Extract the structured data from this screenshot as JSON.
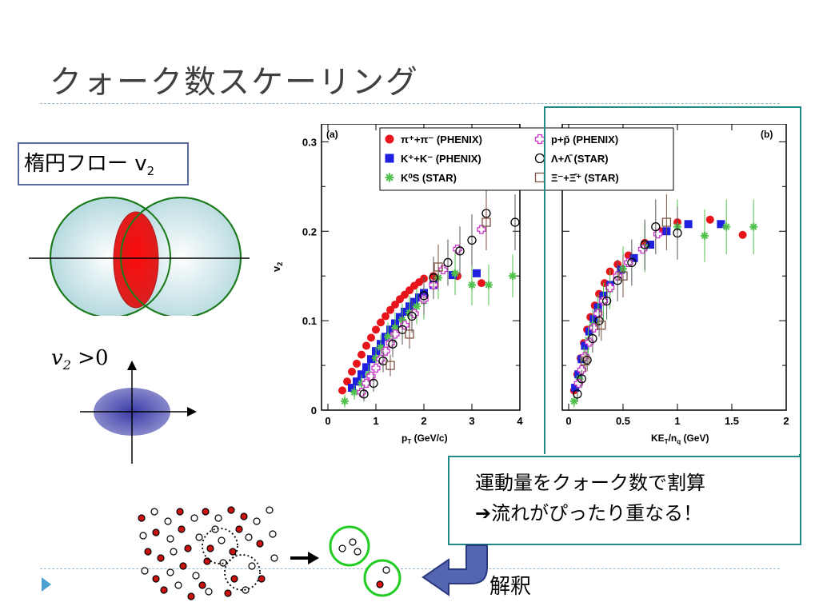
{
  "slide": {
    "title": "クォーク数スケーリング",
    "flow_label": "楕円フロー v",
    "flow_label_sub": "2",
    "v2_condition_var": "v",
    "v2_condition_sub": "2",
    "v2_condition_rest": " >0",
    "callout_line1": "運動量をクォーク数で割算",
    "callout_line2": "➔流れがぴったり重なる！",
    "interpretation": "解釈"
  },
  "colors": {
    "pion": "#e8141b",
    "kaon": "#1f1fe0",
    "ks0": "#52c24e",
    "proton": "#cc33cc",
    "lambda": "#000000",
    "xi": "#7a5240",
    "teal_box": "#1f8a8a",
    "nucleus_edge": "#1a7a1a",
    "overlap": "#ee2222"
  },
  "chart_data": [
    {
      "type": "scatter",
      "panel_label": "(a)",
      "xlabel": "p",
      "xlabel_sub": "T",
      "xlabel_unit": " (GeV/c)",
      "ylabel": "v",
      "ylabel_sub": "2",
      "xlim": [
        0,
        4
      ],
      "ylim": [
        0,
        0.32
      ],
      "x_ticks": [
        "0",
        "1",
        "2",
        "3",
        "4"
      ],
      "y_ticks": [
        "0",
        "0.1",
        "0.2",
        "0.3"
      ],
      "legend": [
        {
          "label": "π⁺+π⁻ (PHENIX)",
          "marker": "circle-filled",
          "color_key": "pion"
        },
        {
          "label": "p+p̄ (PHENIX)",
          "marker": "cross-open",
          "color_key": "proton"
        },
        {
          "label": "K⁺+K⁻ (PHENIX)",
          "marker": "square-filled",
          "color_key": "kaon"
        },
        {
          "label": "Λ+Λ̄ (STAR)",
          "marker": "circle-open",
          "color_key": "lambda"
        },
        {
          "label": "K⁰S (STAR)",
          "marker": "star",
          "color_key": "ks0"
        },
        {
          "label": "Ξ⁻+Ξ̄⁺ (STAR)",
          "marker": "square-open",
          "color_key": "xi"
        }
      ],
      "series": [
        {
          "name": "π⁺+π⁻ (PHENIX)",
          "marker": "circle-filled",
          "color_key": "pion",
          "x": [
            0.3,
            0.4,
            0.5,
            0.6,
            0.7,
            0.8,
            0.9,
            1.0,
            1.1,
            1.2,
            1.3,
            1.4,
            1.5,
            1.6,
            1.7,
            1.8,
            1.9,
            2.0,
            2.2,
            2.7,
            3.2
          ],
          "y": [
            0.022,
            0.032,
            0.043,
            0.052,
            0.062,
            0.072,
            0.081,
            0.09,
            0.098,
            0.105,
            0.112,
            0.118,
            0.124,
            0.129,
            0.134,
            0.139,
            0.143,
            0.147,
            0.15,
            0.15,
            0.142
          ]
        },
        {
          "name": "K⁺+K⁻ (PHENIX)",
          "marker": "square-filled",
          "color_key": "kaon",
          "x": [
            0.5,
            0.6,
            0.7,
            0.8,
            0.9,
            1.0,
            1.1,
            1.2,
            1.3,
            1.4,
            1.5,
            1.6,
            1.7,
            1.8,
            1.9,
            2.0,
            2.2,
            2.6,
            3.1
          ],
          "y": [
            0.025,
            0.032,
            0.04,
            0.048,
            0.057,
            0.066,
            0.074,
            0.082,
            0.09,
            0.097,
            0.104,
            0.11,
            0.116,
            0.121,
            0.126,
            0.131,
            0.14,
            0.151,
            0.153
          ]
        },
        {
          "name": "K⁰S (STAR)",
          "marker": "star",
          "color_key": "ks0",
          "x": [
            0.35,
            0.55,
            0.7,
            0.85,
            1.0,
            1.1,
            1.25,
            1.4,
            1.55,
            1.7,
            1.85,
            2.0,
            2.3,
            2.65,
            3.0,
            3.35,
            3.85
          ],
          "y": [
            0.01,
            0.02,
            0.03,
            0.04,
            0.058,
            0.07,
            0.082,
            0.092,
            0.101,
            0.109,
            0.116,
            0.122,
            0.148,
            0.153,
            0.14,
            0.14,
            0.15
          ]
        },
        {
          "name": "p+p̄ (PHENIX)",
          "marker": "cross-open",
          "color_key": "proton",
          "x": [
            0.7,
            0.8,
            0.9,
            1.0,
            1.1,
            1.2,
            1.3,
            1.4,
            1.6,
            1.8,
            2.0,
            2.2,
            2.4,
            2.7,
            3.2
          ],
          "y": [
            0.02,
            0.03,
            0.038,
            0.047,
            0.057,
            0.066,
            0.075,
            0.085,
            0.095,
            0.108,
            0.124,
            0.14,
            0.157,
            0.18,
            0.202
          ]
        },
        {
          "name": "Λ+Λ̄ (STAR)",
          "marker": "circle-open",
          "color_key": "lambda",
          "x": [
            0.75,
            0.95,
            1.15,
            1.35,
            1.55,
            1.75,
            2.0,
            2.2,
            2.5,
            2.75,
            3.0,
            3.3,
            3.9
          ],
          "y": [
            0.018,
            0.03,
            0.055,
            0.074,
            0.09,
            0.105,
            0.128,
            0.148,
            0.165,
            0.178,
            0.19,
            0.22,
            0.21
          ]
        },
        {
          "name": "Ξ⁻+Ξ̄⁺ (STAR)",
          "marker": "square-open",
          "color_key": "xi",
          "x": [
            1.3,
            1.7,
            2.3,
            3.3
          ],
          "y": [
            0.05,
            0.085,
            0.16,
            0.21
          ]
        }
      ]
    },
    {
      "type": "scatter",
      "panel_label": "(b)",
      "xlabel": "KE",
      "xlabel_sub": "T",
      "xlabel_mid": "/n",
      "xlabel_sub2": "q",
      "xlabel_unit": " (GeV)",
      "xlim": [
        0,
        2
      ],
      "ylim": [
        0,
        0.32
      ],
      "x_ticks": [
        "0",
        "0.5",
        "1",
        "1.5",
        "2"
      ],
      "series": [
        {
          "name": "π⁺+π⁻ (PHENIX)",
          "marker": "circle-filled",
          "color_key": "pion",
          "x": [
            0.05,
            0.08,
            0.11,
            0.14,
            0.17,
            0.2,
            0.24,
            0.28,
            0.33,
            0.38,
            0.45,
            0.55,
            0.7,
            0.85,
            1.0,
            1.3,
            1.6
          ],
          "y": [
            0.022,
            0.04,
            0.058,
            0.075,
            0.09,
            0.104,
            0.117,
            0.13,
            0.142,
            0.155,
            0.163,
            0.173,
            0.187,
            0.2,
            0.21,
            0.213,
            0.196
          ]
        },
        {
          "name": "K⁺+K⁻ (PHENIX)",
          "marker": "square-filled",
          "color_key": "kaon",
          "x": [
            0.06,
            0.09,
            0.12,
            0.15,
            0.19,
            0.23,
            0.27,
            0.32,
            0.38,
            0.48,
            0.6,
            0.75,
            0.9,
            1.1,
            1.4
          ],
          "y": [
            0.025,
            0.04,
            0.057,
            0.072,
            0.088,
            0.102,
            0.115,
            0.128,
            0.14,
            0.157,
            0.17,
            0.185,
            0.2,
            0.208,
            0.208
          ]
        },
        {
          "name": "K⁰S (STAR)",
          "marker": "star",
          "color_key": "ks0",
          "x": [
            0.05,
            0.1,
            0.14,
            0.18,
            0.22,
            0.27,
            0.32,
            0.38,
            0.5,
            0.7,
            1.0,
            1.25,
            1.45,
            1.7
          ],
          "y": [
            0.01,
            0.035,
            0.058,
            0.078,
            0.095,
            0.11,
            0.122,
            0.135,
            0.158,
            0.182,
            0.205,
            0.195,
            0.205,
            0.205
          ]
        },
        {
          "name": "p+p̄ (PHENIX)",
          "marker": "cross-open",
          "color_key": "proton",
          "x": [
            0.09,
            0.12,
            0.15,
            0.19,
            0.23,
            0.27,
            0.32,
            0.38,
            0.45,
            0.55,
            0.68,
            0.82
          ],
          "y": [
            0.03,
            0.045,
            0.06,
            0.076,
            0.092,
            0.108,
            0.122,
            0.137,
            0.15,
            0.165,
            0.18,
            0.197
          ]
        },
        {
          "name": "Λ+Λ̄ (STAR)",
          "marker": "circle-open",
          "color_key": "lambda",
          "x": [
            0.08,
            0.12,
            0.17,
            0.22,
            0.28,
            0.35,
            0.45,
            0.58,
            0.7,
            0.8,
            1.0
          ],
          "y": [
            0.018,
            0.035,
            0.056,
            0.08,
            0.1,
            0.122,
            0.145,
            0.165,
            0.185,
            0.205,
            0.198
          ]
        },
        {
          "name": "Ξ⁻+Ξ̄⁺ (STAR)",
          "marker": "square-open",
          "color_key": "xi",
          "x": [
            0.15,
            0.3,
            0.5,
            0.9
          ],
          "y": [
            0.055,
            0.095,
            0.15,
            0.21
          ]
        }
      ]
    }
  ]
}
